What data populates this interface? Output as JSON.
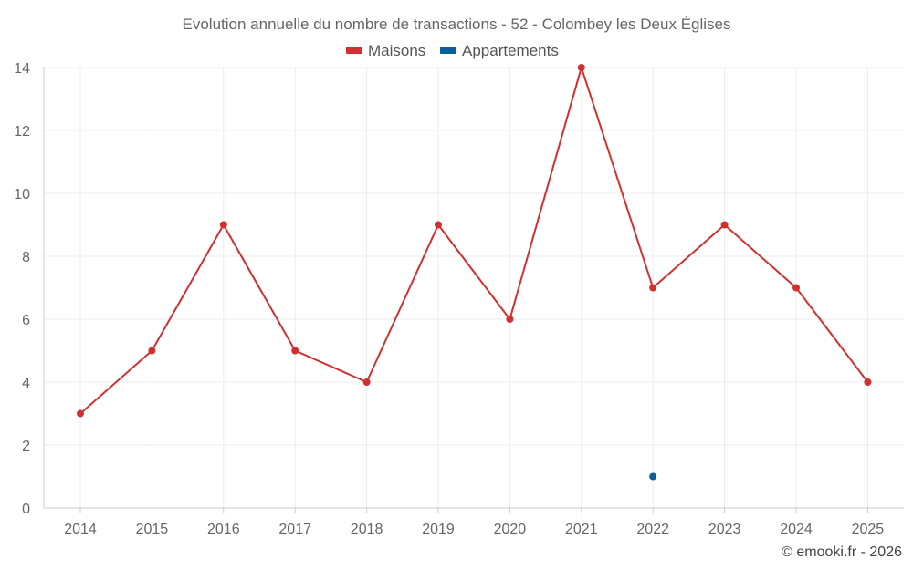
{
  "chart_data": {
    "type": "line",
    "title": "Evolution annuelle du nombre de transactions - 52 - Colombey les Deux Églises",
    "categories": [
      "2014",
      "2015",
      "2016",
      "2017",
      "2018",
      "2019",
      "2020",
      "2021",
      "2022",
      "2023",
      "2024",
      "2025"
    ],
    "series": [
      {
        "name": "Maisons",
        "color": "#d32f2f",
        "values": [
          3,
          5,
          9,
          5,
          4,
          9,
          6,
          14,
          7,
          9,
          7,
          4
        ]
      },
      {
        "name": "Appartements",
        "color": "#0d5f99",
        "values": [
          null,
          null,
          null,
          null,
          null,
          null,
          null,
          null,
          1,
          null,
          null,
          null
        ]
      }
    ],
    "ylim": [
      0,
      14
    ],
    "yticks": [
      "0",
      "2",
      "4",
      "6",
      "8",
      "10",
      "12",
      "14"
    ],
    "xlabel": "",
    "ylabel": "",
    "grid": true,
    "legend_position": "top-center"
  },
  "credit": "© emooki.fr - 2026"
}
